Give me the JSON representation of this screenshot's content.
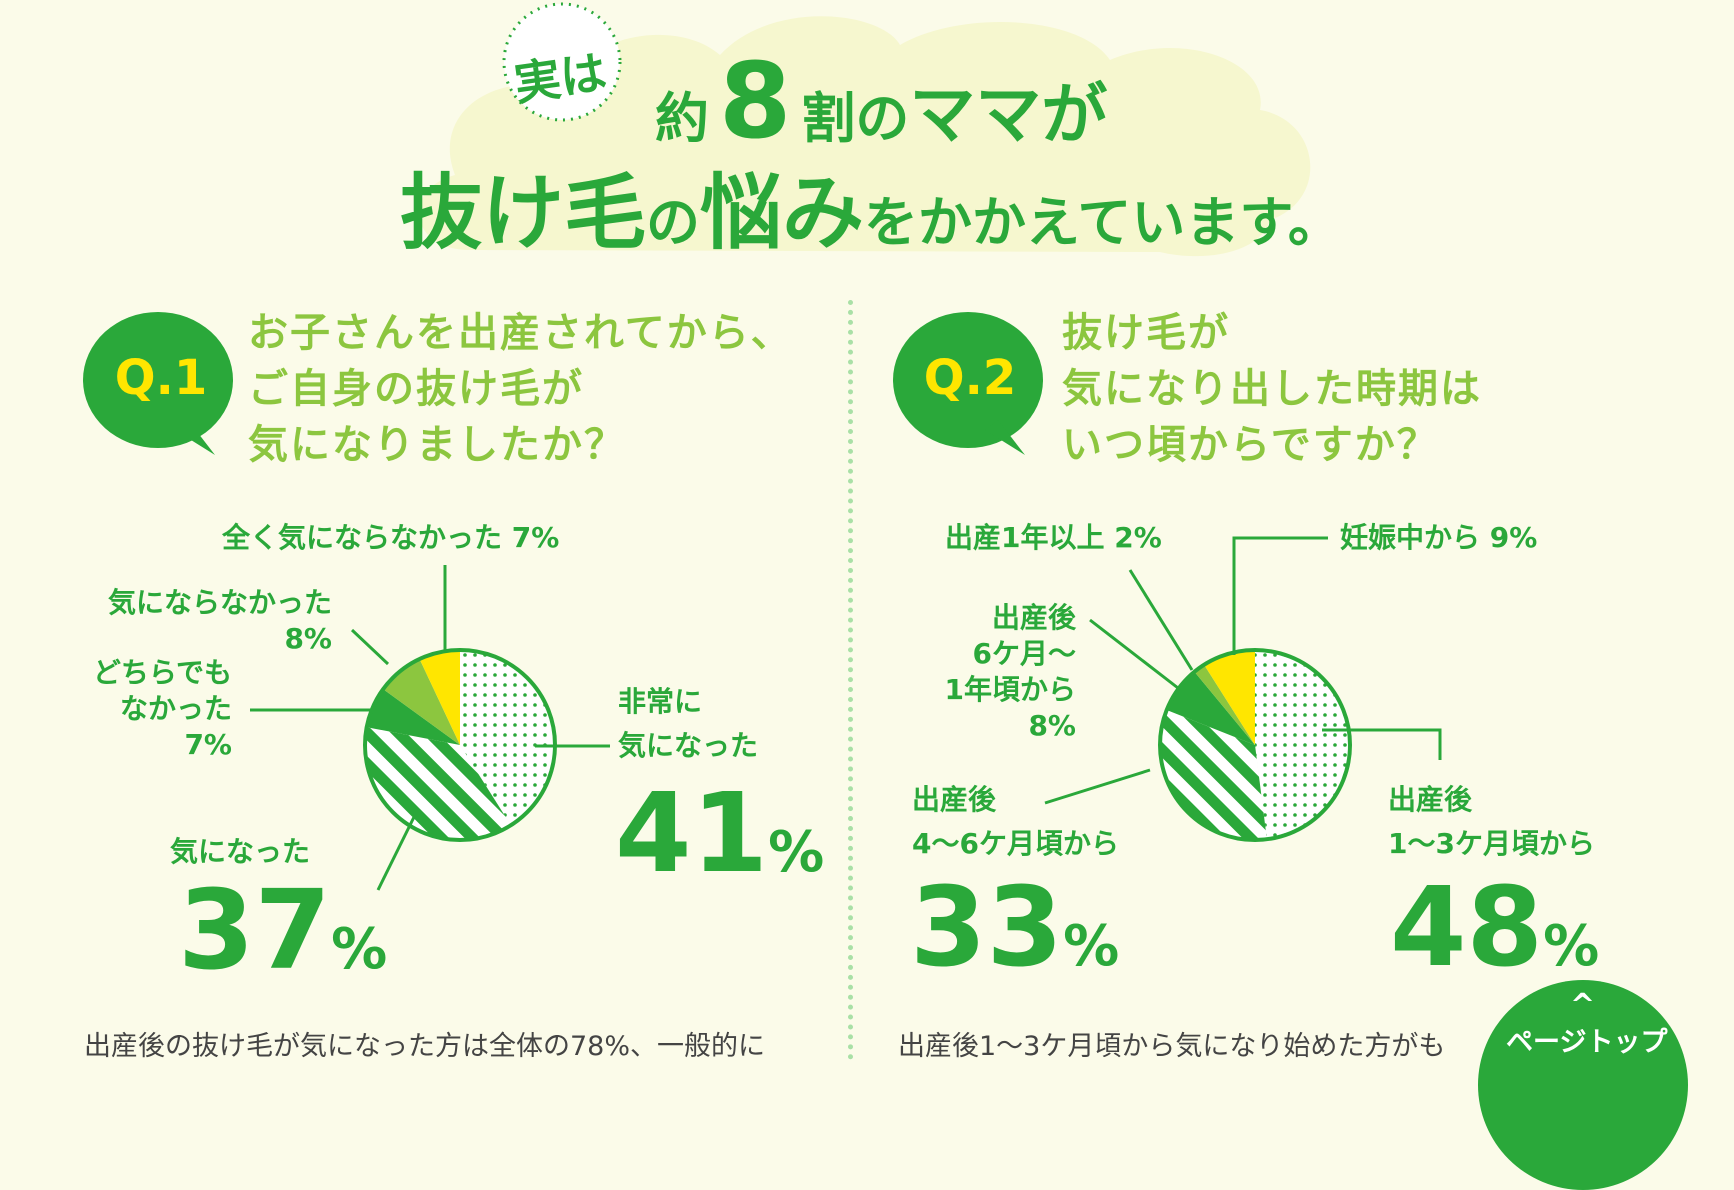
{
  "header": {
    "badge": "実は",
    "line1_pre": "約",
    "line1_num": "8",
    "line1_mid": "割の",
    "line1_post": "ママが",
    "line2_a": "抜け毛",
    "line2_b": "の",
    "line2_c": "悩み",
    "line2_d": "をかかえています。"
  },
  "q1": {
    "label": "Q.1",
    "question": [
      "お子さんを出産されてから、",
      "ご自身の抜け毛が",
      "気になりましたか？"
    ],
    "note": "出産後の抜け毛が気になった方は全体の78%、一般的に"
  },
  "q2": {
    "label": "Q.2",
    "question": [
      "抜け毛が",
      "気になり出した時期は",
      "いつ頃からですか？"
    ],
    "note": "出産後1〜3ケ月頃から気になり始めた方がも"
  },
  "colors": {
    "green": "#2aa83a",
    "light_green": "#8cc63f",
    "yellow": "#ffe600",
    "cloud": "#f6f7cf"
  },
  "chart_data": [
    {
      "type": "pie",
      "title": "",
      "slices": [
        {
          "label": "非常に気になった",
          "value": 41,
          "display": "41",
          "label_lines": [
            "非常に",
            "気になった"
          ]
        },
        {
          "label": "気になった",
          "value": 37,
          "display": "37",
          "label_lines": [
            "気になった"
          ]
        },
        {
          "label": "どちらでもなかった",
          "value": 7,
          "display": "7%",
          "label_lines": [
            "どちらでも",
            "なかった"
          ]
        },
        {
          "label": "気にならなかった",
          "value": 8,
          "display": "8%",
          "label_lines": [
            "気にならなかった"
          ]
        },
        {
          "label": "全く気にならなかった",
          "value": 7,
          "display": "7%",
          "label_lines": [
            "全く気にならなかった"
          ]
        }
      ]
    },
    {
      "type": "pie",
      "title": "",
      "slices": [
        {
          "label": "出産後1〜3ケ月頃から",
          "value": 48,
          "display": "48",
          "label_lines": [
            "出産後",
            "1〜3ケ月頃から"
          ]
        },
        {
          "label": "出産後4〜6ケ月頃から",
          "value": 33,
          "display": "33",
          "label_lines": [
            "出産後",
            "4〜6ケ月頃から"
          ]
        },
        {
          "label": "出産後6ケ月〜1年頃から",
          "value": 8,
          "display": "8%",
          "label_lines": [
            "出産後",
            "6ケ月〜",
            "1年頃から"
          ]
        },
        {
          "label": "出産1年以上",
          "value": 2,
          "display": "2%",
          "label_lines": [
            "出産1年以上"
          ]
        },
        {
          "label": "妊娠中から",
          "value": 9,
          "display": "9%",
          "label_lines": [
            "妊娠中から"
          ]
        }
      ]
    }
  ],
  "percent_sign": "%",
  "pagetop": {
    "arrow": "^",
    "label": "ページトップ"
  }
}
